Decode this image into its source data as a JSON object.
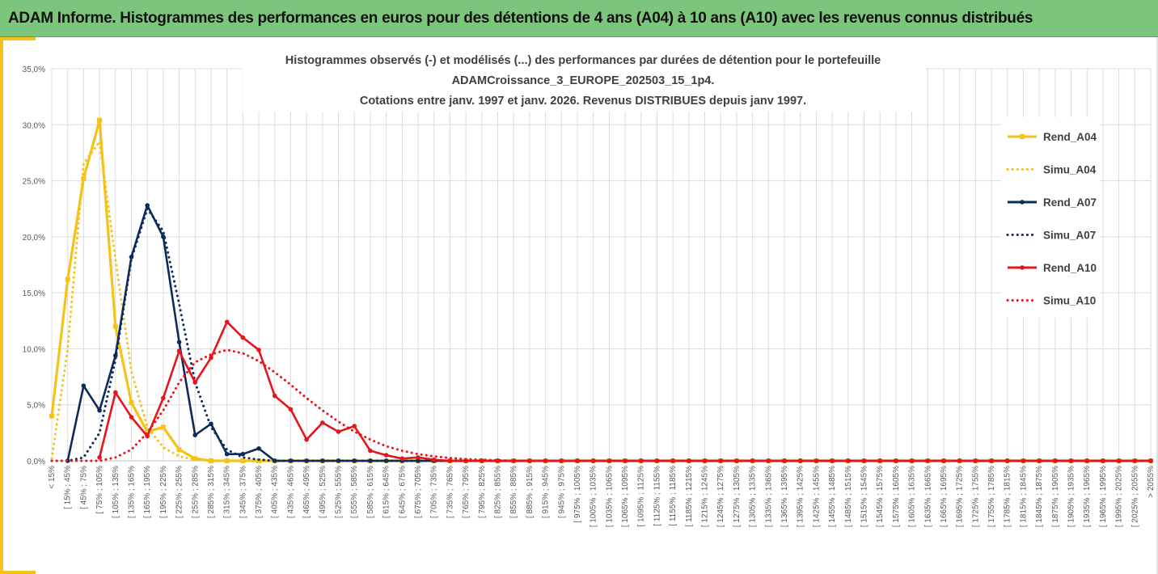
{
  "header": {
    "title": "ADAM Informe. Histogrammes des performances en euros pour des détentions de 4 ans (A04) à 10 ans (A10) avec les revenus connus distribués"
  },
  "colors": {
    "banner": "#7dc47d",
    "accent": "#f5c218",
    "a04": "#f5c218",
    "a07": "#0d2a5c",
    "a10": "#e8141c"
  },
  "chart_data": {
    "type": "line",
    "title": [
      "Histogrammes observés (-) et modélisés (...) des performances par durées de détention pour le portefeuille",
      "ADAMCroissance_3_EUROPE_202503_15_1p4.",
      "Cotations entre janv. 1997 et janv. 2026. Revenus DISTRIBUES depuis janv 1997."
    ],
    "xlabel": "",
    "ylabel": "",
    "ylim": [
      0,
      35
    ],
    "yticks": [
      0,
      5,
      10,
      15,
      20,
      25,
      30,
      35
    ],
    "yticklabels": [
      "0,0%",
      "5,0%",
      "10,0%",
      "15,0%",
      "20,0%",
      "25,0%",
      "30,0%",
      "35,0%"
    ],
    "categories": [
      "< 15%",
      "[ 15% ; 45%",
      "[ 45% ; 75%",
      "[ 75% ; 105%",
      "[ 105% ; 135%",
      "[ 135% ; 165%",
      "[ 165% ; 195%",
      "[ 195% ; 225%",
      "[ 225% ; 255%",
      "[ 255% ; 285%",
      "[ 285% ; 315%",
      "[ 315% ; 345%",
      "[ 345% ; 375%",
      "[ 375% ; 405%",
      "[ 405% ; 435%",
      "[ 435% ; 465%",
      "[ 465% ; 495%",
      "[ 495% ; 525%",
      "[ 525% ; 555%",
      "[ 555% ; 585%",
      "[ 585% ; 615%",
      "[ 615% ; 645%",
      "[ 645% ; 675%",
      "[ 675% ; 705%",
      "[ 705% ; 735%",
      "[ 735% ; 765%",
      "[ 765% ; 795%",
      "[ 795% ; 825%",
      "[ 825% ; 855%",
      "[ 855% ; 885%",
      "[ 885% ; 915%",
      "[ 915% ; 945%",
      "[ 945% ; 975%",
      "[ 975% ; 1005%",
      "[ 1005% ; 1035%",
      "[ 1035% ; 1065%",
      "[ 1065% ; 1095%",
      "[ 1095% ; 1125%",
      "[ 1125% ; 1155%",
      "[ 1155% ; 1185%",
      "[ 1185% ; 1215%",
      "[ 1215% ; 1245%",
      "[ 1245% ; 1275%",
      "[ 1275% ; 1305%",
      "[ 1305% ; 1335%",
      "[ 1335% ; 1365%",
      "[ 1365% ; 1395%",
      "[ 1395% ; 1425%",
      "[ 1425% ; 1455%",
      "[ 1455% ; 1485%",
      "[ 1485% ; 1515%",
      "[ 1515% ; 1545%",
      "[ 1545% ; 1575%",
      "[ 1575% ; 1605%",
      "[ 1605% ; 1635%",
      "[ 1635% ; 1665%",
      "[ 1665% ; 1695%",
      "[ 1695% ; 1725%",
      "[ 1725% ; 1755%",
      "[ 1755% ; 1785%",
      "[ 1785% ; 1815%",
      "[ 1815% ; 1845%",
      "[ 1845% ; 1875%",
      "[ 1875% ; 1905%",
      "[ 1905% ; 1935%",
      "[ 1935% ; 1965%",
      "[ 1965% ; 1995%",
      "[ 1995% ; 2025%",
      "[ 2025% ; 2055%",
      "> 2055%"
    ],
    "series": [
      {
        "name": "Rend_A04",
        "style": "solid",
        "marker": "square",
        "color": "#f5c218",
        "values": [
          4.0,
          16.2,
          25.2,
          30.4,
          12.0,
          5.2,
          2.6,
          3.0,
          1.0,
          0.2,
          0,
          0,
          0,
          0,
          0,
          0,
          0,
          0,
          0,
          0,
          0,
          0,
          0,
          0,
          0,
          0,
          0,
          0,
          0,
          0,
          0,
          0,
          0,
          0,
          0,
          0,
          0,
          0,
          0,
          0,
          0,
          0,
          0,
          0,
          0,
          0,
          0,
          0,
          0,
          0,
          0,
          0,
          0,
          0,
          0,
          0,
          0,
          0,
          0,
          0,
          0,
          0,
          0,
          0,
          0,
          0,
          0,
          0,
          0,
          0
        ]
      },
      {
        "name": "Simu_A04",
        "style": "dotted",
        "color": "#f5c218",
        "values": [
          0.2,
          10.0,
          26.5,
          28.5,
          18.0,
          8.0,
          3.0,
          1.2,
          0.4,
          0.1,
          0,
          0,
          0,
          0,
          0,
          0,
          0,
          0,
          0,
          0,
          0,
          0,
          0,
          0,
          0,
          0,
          0,
          0,
          0,
          0,
          0,
          0,
          0,
          0,
          0,
          0,
          0,
          0,
          0,
          0,
          0,
          0,
          0,
          0,
          0,
          0,
          0,
          0,
          0,
          0,
          0,
          0,
          0,
          0,
          0,
          0,
          0,
          0,
          0,
          0,
          0,
          0,
          0,
          0,
          0,
          0,
          0,
          0,
          0,
          0
        ]
      },
      {
        "name": "Rend_A07",
        "style": "solid",
        "marker": "circle",
        "color": "#0d2a5c",
        "values": [
          null,
          0,
          6.7,
          4.5,
          9.4,
          18.2,
          22.8,
          20.0,
          10.6,
          2.3,
          3.3,
          0.6,
          0.6,
          1.1,
          0,
          0,
          0,
          0,
          0,
          0,
          0,
          0,
          0,
          0,
          0,
          0,
          0,
          0,
          0,
          0,
          0,
          0,
          0,
          0,
          0,
          0,
          0,
          0,
          0,
          0,
          0,
          0,
          0,
          0,
          0,
          0,
          0,
          0,
          0,
          0,
          0,
          0,
          0,
          0,
          0,
          0,
          0,
          0,
          0,
          0,
          0,
          0,
          0,
          0,
          0,
          0,
          0,
          0,
          0,
          0
        ]
      },
      {
        "name": "Simu_A07",
        "style": "dotted",
        "color": "#0d2a5c",
        "values": [
          0,
          0,
          0.3,
          2.5,
          9.0,
          18.0,
          22.5,
          20.5,
          14.0,
          7.0,
          3.0,
          1.0,
          0.3,
          0.1,
          0,
          0,
          0,
          0,
          0,
          0,
          0,
          0,
          0,
          0,
          0,
          0,
          0,
          0,
          0,
          0,
          0,
          0,
          0,
          0,
          0,
          0,
          0,
          0,
          0,
          0,
          0,
          0,
          0,
          0,
          0,
          0,
          0,
          0,
          0,
          0,
          0,
          0,
          0,
          0,
          0,
          0,
          0,
          0,
          0,
          0,
          0,
          0,
          0,
          0,
          0,
          0,
          0,
          0,
          0,
          0
        ]
      },
      {
        "name": "Rend_A10",
        "style": "solid",
        "marker": "circle",
        "color": "#e8141c",
        "values": [
          null,
          null,
          null,
          0.3,
          6.1,
          3.9,
          2.2,
          5.6,
          9.8,
          7.0,
          9.2,
          12.4,
          11.0,
          9.9,
          5.8,
          4.6,
          1.9,
          3.4,
          2.6,
          3.1,
          0.9,
          0.5,
          0.2,
          0.3,
          0.1,
          0,
          0,
          0,
          0,
          0,
          0,
          0,
          0,
          0,
          0,
          0,
          0,
          0,
          0,
          0,
          0,
          0,
          0,
          0,
          0,
          0,
          0,
          0,
          0,
          0,
          0,
          0,
          0,
          0,
          0,
          0,
          0,
          0,
          0,
          0,
          0,
          0,
          0,
          0,
          0,
          0,
          0,
          0,
          0,
          0
        ]
      },
      {
        "name": "Simu_A10",
        "style": "dotted",
        "color": "#e8141c",
        "values": [
          0,
          0,
          0,
          0,
          0.3,
          1.0,
          2.5,
          4.5,
          7.0,
          8.8,
          9.5,
          9.9,
          9.6,
          8.9,
          7.9,
          6.8,
          5.6,
          4.5,
          3.5,
          2.6,
          1.9,
          1.3,
          0.9,
          0.6,
          0.4,
          0.25,
          0.15,
          0.1,
          0.05,
          0,
          0,
          0,
          0,
          0,
          0,
          0,
          0,
          0,
          0,
          0,
          0,
          0,
          0,
          0,
          0,
          0,
          0,
          0,
          0,
          0,
          0,
          0,
          0,
          0,
          0,
          0,
          0,
          0,
          0,
          0,
          0,
          0,
          0,
          0,
          0,
          0,
          0,
          0,
          0,
          0
        ]
      }
    ],
    "legend": "right"
  }
}
